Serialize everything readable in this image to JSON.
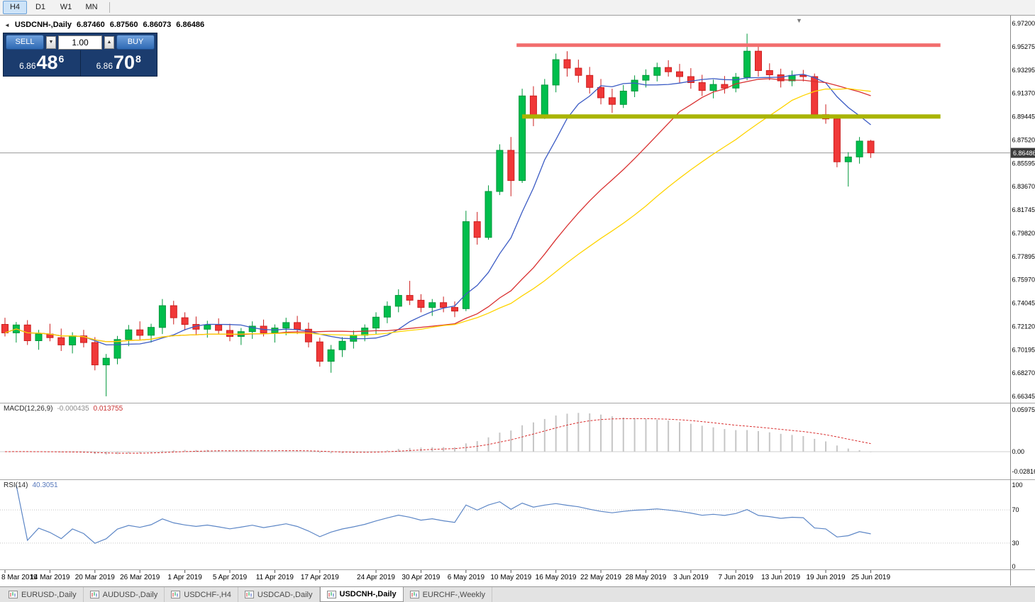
{
  "toolbar": {
    "buttons": [
      "H4",
      "D1",
      "W1",
      "MN"
    ],
    "active": "H4"
  },
  "icons": {
    "collapse": "◄",
    "shift_marker": "▼",
    "vol_up": "▲",
    "vol_down": "▼"
  },
  "chart_header": {
    "symbol_title": "USDCNH-,Daily",
    "open": "6.87460",
    "high": "6.87560",
    "low": "6.86073",
    "close": "6.86486"
  },
  "trade_panel": {
    "sell_label": "SELL",
    "buy_label": "BUY",
    "volume": "1.00",
    "bid": {
      "prefix": "6.86",
      "big": "48",
      "sup": "6"
    },
    "ask": {
      "prefix": "6.86",
      "big": "70",
      "sup": "8"
    }
  },
  "price_axis": {
    "labels": [
      "6.97200",
      "6.95275",
      "6.93295",
      "6.91370",
      "6.89445",
      "6.87520",
      "6.85595",
      "6.83670",
      "6.81745",
      "6.79820",
      "6.77895",
      "6.75970",
      "6.74045",
      "6.72120",
      "6.70195",
      "6.68270",
      "6.66345"
    ],
    "current_price": "6.86486"
  },
  "macd_panel": {
    "name": "MACD(12,26,9)",
    "main_value": "-0.000435",
    "signal_value": "0.013755",
    "axis_values": [
      "0.059758",
      "0.00",
      "-0.02816"
    ]
  },
  "rsi_panel": {
    "name": "RSI(14)",
    "value": "40.3051",
    "axis_values": [
      "100",
      "70",
      "30",
      "0"
    ]
  },
  "bottom_tabs": {
    "tabs": [
      "EURUSD-,Daily",
      "AUDUSD-,Daily",
      "USDCHF-,H4",
      "USDCAD-,Daily",
      "USDCNH-,Daily",
      "EURCHF-,Weekly"
    ],
    "active": "USDCNH-,Daily"
  },
  "chart_data": {
    "type": "candlestick",
    "symbol": "USDCNH",
    "period": "Daily",
    "current_price": 6.86486,
    "ylim": [
      6.66345,
      6.972
    ],
    "candles": [
      [
        6.723,
        6.7285,
        6.713,
        6.716
      ],
      [
        6.716,
        6.725,
        6.708,
        6.7225
      ],
      [
        6.7225,
        6.7265,
        6.706,
        6.7095
      ],
      [
        6.7095,
        6.7185,
        6.702,
        6.715
      ],
      [
        6.715,
        6.7235,
        6.709,
        6.712
      ],
      [
        6.712,
        6.7195,
        6.701,
        6.706
      ],
      [
        6.706,
        6.7165,
        6.699,
        6.7135
      ],
      [
        6.7135,
        6.7185,
        6.704,
        6.708
      ],
      [
        6.708,
        6.7125,
        6.685,
        6.6895
      ],
      [
        6.6895,
        6.6985,
        6.6635,
        6.695
      ],
      [
        6.695,
        6.7135,
        6.69,
        6.7105
      ],
      [
        6.7105,
        6.7225,
        6.705,
        6.7185
      ],
      [
        6.7185,
        6.7255,
        6.71,
        6.714
      ],
      [
        6.714,
        6.7235,
        6.708,
        6.7205
      ],
      [
        6.7205,
        6.744,
        6.715,
        6.7385
      ],
      [
        6.7385,
        6.7425,
        6.723,
        6.7285
      ],
      [
        6.7285,
        6.733,
        6.718,
        6.723
      ],
      [
        6.723,
        6.7295,
        6.714,
        6.719
      ],
      [
        6.719,
        6.726,
        6.712,
        6.7225
      ],
      [
        6.7225,
        6.728,
        6.715,
        6.718
      ],
      [
        6.718,
        6.7235,
        6.709,
        6.713
      ],
      [
        6.713,
        6.72,
        6.706,
        6.717
      ],
      [
        6.717,
        6.7255,
        6.711,
        6.7215
      ],
      [
        6.7215,
        6.727,
        6.713,
        6.716
      ],
      [
        6.716,
        6.723,
        6.708,
        6.72
      ],
      [
        6.72,
        6.7285,
        6.714,
        6.7245
      ],
      [
        6.7245,
        6.73,
        6.715,
        6.719
      ],
      [
        6.719,
        6.7245,
        6.704,
        6.7085
      ],
      [
        6.7085,
        6.712,
        6.688,
        6.6925
      ],
      [
        6.6925,
        6.706,
        6.683,
        6.702
      ],
      [
        6.702,
        6.7125,
        6.696,
        6.709
      ],
      [
        6.709,
        6.718,
        6.703,
        6.714
      ],
      [
        6.714,
        6.723,
        6.709,
        6.72
      ],
      [
        6.72,
        6.733,
        6.715,
        6.729
      ],
      [
        6.729,
        6.742,
        6.724,
        6.738
      ],
      [
        6.738,
        6.752,
        6.733,
        6.747
      ],
      [
        6.747,
        6.759,
        6.739,
        6.743
      ],
      [
        6.743,
        6.748,
        6.733,
        6.737
      ],
      [
        6.737,
        6.744,
        6.73,
        6.741
      ],
      [
        6.741,
        6.746,
        6.733,
        6.737
      ],
      [
        6.737,
        6.742,
        6.729,
        6.734
      ],
      [
        6.736,
        6.817,
        6.734,
        6.808
      ],
      [
        6.808,
        6.816,
        6.789,
        6.795
      ],
      [
        6.795,
        6.838,
        6.793,
        6.833
      ],
      [
        6.833,
        6.872,
        6.83,
        6.867
      ],
      [
        6.867,
        6.878,
        6.829,
        6.842
      ],
      [
        6.842,
        6.918,
        6.84,
        6.912
      ],
      [
        6.912,
        6.92,
        6.887,
        6.895
      ],
      [
        6.895,
        6.926,
        6.893,
        6.921
      ],
      [
        6.921,
        6.947,
        6.915,
        6.942
      ],
      [
        6.942,
        6.949,
        6.928,
        6.935
      ],
      [
        6.935,
        6.942,
        6.923,
        6.929
      ],
      [
        6.929,
        6.936,
        6.914,
        6.919
      ],
      [
        6.919,
        6.926,
        6.905,
        6.9105
      ],
      [
        6.9105,
        6.918,
        6.898,
        6.905
      ],
      [
        6.905,
        6.921,
        6.902,
        6.916
      ],
      [
        6.916,
        6.929,
        6.911,
        6.925
      ],
      [
        6.925,
        6.934,
        6.919,
        6.929
      ],
      [
        6.929,
        6.9395,
        6.924,
        6.9355
      ],
      [
        6.9355,
        6.9415,
        6.928,
        6.932
      ],
      [
        6.932,
        6.9385,
        6.923,
        6.928
      ],
      [
        6.928,
        6.935,
        6.918,
        6.923
      ],
      [
        6.923,
        6.9295,
        6.912,
        6.9165
      ],
      [
        6.9165,
        6.9255,
        6.91,
        6.9215
      ],
      [
        6.9215,
        6.9285,
        6.914,
        6.9185
      ],
      [
        6.9185,
        6.931,
        6.915,
        6.9275
      ],
      [
        6.9275,
        6.9635,
        6.925,
        6.949
      ],
      [
        6.949,
        6.953,
        6.928,
        6.933
      ],
      [
        6.933,
        6.939,
        6.925,
        6.9295
      ],
      [
        6.9295,
        6.9345,
        6.919,
        6.9245
      ],
      [
        6.9245,
        6.933,
        6.92,
        6.929
      ],
      [
        6.929,
        6.9335,
        6.924,
        6.928
      ],
      [
        6.928,
        6.9305,
        6.894,
        6.8965
      ],
      [
        6.8965,
        6.905,
        6.889,
        6.893
      ],
      [
        6.893,
        6.896,
        6.853,
        6.8575
      ],
      [
        6.8575,
        6.8655,
        6.837,
        6.8615
      ],
      [
        6.8615,
        6.878,
        6.856,
        6.8746
      ],
      [
        6.8746,
        6.8756,
        6.86073,
        6.86486
      ]
    ],
    "date_labels": [
      {
        "text": "8 Mar 2019",
        "bar": 0
      },
      {
        "text": "14 Mar 2019",
        "bar": 4
      },
      {
        "text": "20 Mar 2019",
        "bar": 8
      },
      {
        "text": "26 Mar 2019",
        "bar": 12
      },
      {
        "text": "1 Apr 2019",
        "bar": 16
      },
      {
        "text": "5 Apr 2019",
        "bar": 20
      },
      {
        "text": "11 Apr 2019",
        "bar": 24
      },
      {
        "text": "17 Apr 2019",
        "bar": 28
      },
      {
        "text": "24 Apr 2019",
        "bar": 33
      },
      {
        "text": "30 Apr 2019",
        "bar": 37
      },
      {
        "text": "6 May 2019",
        "bar": 41
      },
      {
        "text": "10 May 2019",
        "bar": 45
      },
      {
        "text": "16 May 2019",
        "bar": 49
      },
      {
        "text": "22 May 2019",
        "bar": 53
      },
      {
        "text": "28 May 2019",
        "bar": 57
      },
      {
        "text": "3 Jun 2019",
        "bar": 61
      },
      {
        "text": "7 Jun 2019",
        "bar": 65
      },
      {
        "text": "13 Jun 2019",
        "bar": 69
      },
      {
        "text": "19 Jun 2019",
        "bar": 73
      },
      {
        "text": "25 Jun 2019",
        "bar": 77
      }
    ],
    "moving_averages": [
      {
        "name": "ma-fast",
        "period": 8,
        "color": "#3B5BC4"
      },
      {
        "name": "ma-medium",
        "period": 20,
        "color": "#D93030"
      },
      {
        "name": "ma-slow",
        "period": 30,
        "color": "#FFD400"
      }
    ],
    "hlines": [
      {
        "name": "resistance-line",
        "price": 6.954,
        "color": "#F26D6D",
        "thickness": 5,
        "from_bar": 45.5,
        "to_bar": 83.2
      },
      {
        "name": "support-line",
        "price": 6.895,
        "color": "#A9B400",
        "thickness": 6,
        "from_bar": 46,
        "to_bar": 83.2
      }
    ],
    "macd": {
      "fast": 12,
      "slow": 26,
      "signal": 9,
      "histogram_color": "#C6C6C6",
      "signal_color": "#D93030"
    },
    "rsi": {
      "period": 14,
      "color": "#5C86C6",
      "levels": [
        70,
        30
      ]
    }
  }
}
